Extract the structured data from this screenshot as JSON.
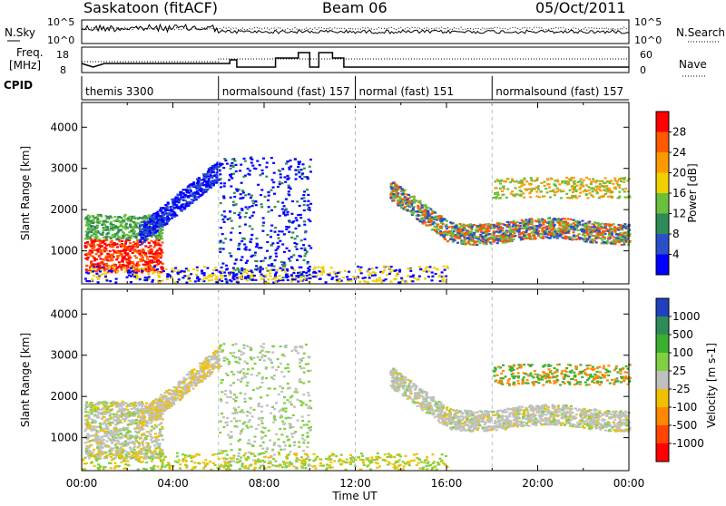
{
  "header": {
    "station": "Saskatoon (fitACF)",
    "beam": "Beam 06",
    "date": "05/Oct/2011"
  },
  "top_panels": {
    "nsky_label": "N.Sky",
    "nsearch_label": "N.Search",
    "nsky_ticks": [
      "10^5",
      "10^0"
    ],
    "nsearch_ticks": [
      "10^5",
      "10^0"
    ],
    "freq_label_1": "Freq.",
    "freq_label_2": "[MHz]",
    "freq_ticks": [
      "18",
      "8"
    ],
    "nave_label": "Nave",
    "nave_ticks": [
      "60",
      "0"
    ],
    "cpid_label": "CPID",
    "cpid_segments": [
      {
        "label": "themis 3300",
        "start_h": 0,
        "end_h": 6
      },
      {
        "label": "normalsound (fast) 157",
        "start_h": 6,
        "end_h": 12
      },
      {
        "label": "normal (fast) 151",
        "start_h": 12,
        "end_h": 18
      },
      {
        "label": "normalsound (fast) 157",
        "start_h": 18,
        "end_h": 24
      }
    ]
  },
  "chart_data": [
    {
      "type": "heatmap",
      "title": "",
      "quantity": "Power",
      "ylabel": "Slant Range [km]",
      "xlabel": "",
      "xlim": [
        0,
        24
      ],
      "ylim": [
        200,
        4600
      ],
      "yticks": [
        "1000",
        "2000",
        "3000",
        "4000"
      ],
      "colorbar_label": "Power [dB]",
      "colorbar_ticks": [
        "4",
        "8",
        "12",
        "16",
        "20",
        "24",
        "28"
      ],
      "colorbar_colors": [
        "#0000ff",
        "#2a50c8",
        "#2e8b57",
        "#6abf3b",
        "#f0d000",
        "#ff9900",
        "#ff5a00",
        "#ff0000"
      ],
      "scatter_regions": [
        {
          "x": [
            0.2,
            3.5
          ],
          "y": [
            500,
            1800
          ],
          "intensity": "high"
        },
        {
          "x": [
            2.5,
            6.0
          ],
          "y": [
            1500,
            3300
          ],
          "intensity": "low"
        },
        {
          "x": [
            6.0,
            10.0
          ],
          "y": [
            300,
            3300
          ],
          "intensity": "low"
        },
        {
          "x": [
            13.5,
            24.0
          ],
          "y": [
            900,
            2800
          ],
          "intensity": "medium"
        }
      ]
    },
    {
      "type": "heatmap",
      "title": "",
      "quantity": "Velocity",
      "ylabel": "Slant Range [km]",
      "xlabel": "Time UT",
      "xlim": [
        0,
        24
      ],
      "ylim": [
        200,
        4600
      ],
      "yticks": [
        "1000",
        "2000",
        "3000",
        "4000"
      ],
      "xticks": [
        "00:00",
        "04:00",
        "08:00",
        "12:00",
        "16:00",
        "20:00",
        "00:00"
      ],
      "colorbar_label": "Velocity [m s-1]",
      "colorbar_ticks": [
        "1000",
        "500",
        "100",
        "25",
        "-25",
        "-100",
        "-500",
        "-1000"
      ],
      "colorbar_colors": [
        "#2040c0",
        "#2e8b57",
        "#3ab030",
        "#80d040",
        "#c0c0c0",
        "#f0c000",
        "#ff8800",
        "#ff4400",
        "#ff0000"
      ],
      "scatter_regions": [
        {
          "x": [
            0.2,
            3.5
          ],
          "y": [
            500,
            2800
          ],
          "intensity": "ground"
        },
        {
          "x": [
            2.5,
            6.0
          ],
          "y": [
            1500,
            3300
          ],
          "intensity": "mixed"
        },
        {
          "x": [
            13.5,
            24.0
          ],
          "y": [
            900,
            2800
          ],
          "intensity": "ground"
        }
      ]
    }
  ]
}
